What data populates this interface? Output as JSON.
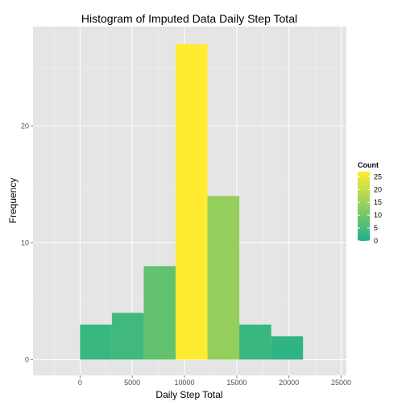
{
  "chart_data": {
    "type": "bar",
    "title": "Histogram of Imputed Data Daily Step Total",
    "xlabel": "Daily Step Total",
    "ylabel": "Frequency",
    "xlim": [
      -4500,
      25500
    ],
    "ylim": [
      -1.35,
      28.5
    ],
    "x_ticks": [
      0,
      5000,
      10000,
      15000,
      20000,
      25000
    ],
    "y_ticks": [
      0,
      10,
      20
    ],
    "bins": [
      {
        "x_start": 0,
        "x_end": 3050,
        "count": 3
      },
      {
        "x_start": 3050,
        "x_end": 6100,
        "count": 4
      },
      {
        "x_start": 6100,
        "x_end": 9150,
        "count": 8
      },
      {
        "x_start": 9150,
        "x_end": 12200,
        "count": 27
      },
      {
        "x_start": 12200,
        "x_end": 15250,
        "count": 14
      },
      {
        "x_start": 15250,
        "x_end": 18300,
        "count": 3
      },
      {
        "x_start": 18300,
        "x_end": 21350,
        "count": 2
      }
    ],
    "grid": true,
    "background": "#e5e5e5",
    "gridline_color": "#ffffff",
    "legend": {
      "title": "Count",
      "position": "right",
      "ticks": [
        25,
        20,
        15,
        10,
        5,
        0
      ],
      "range": [
        0,
        27
      ],
      "color_low": "#20b08b",
      "color_high": "#ffec30"
    }
  }
}
